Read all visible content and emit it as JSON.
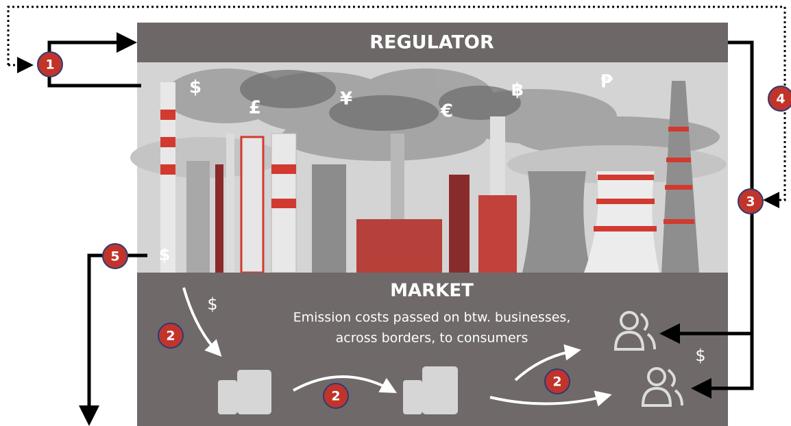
{
  "regulator": {
    "label": "REGULATOR"
  },
  "market": {
    "label": "MARKET",
    "description": [
      "Emission costs passed on btw. businesses,",
      "across borders, to consumers"
    ]
  },
  "currencies": [
    "$",
    "£",
    "¥",
    "€",
    "฿",
    "₱"
  ],
  "steps": [
    "1",
    "4",
    "3",
    "5",
    "2",
    "2",
    "2"
  ],
  "flow_labels": [
    "$",
    "$",
    "$"
  ]
}
